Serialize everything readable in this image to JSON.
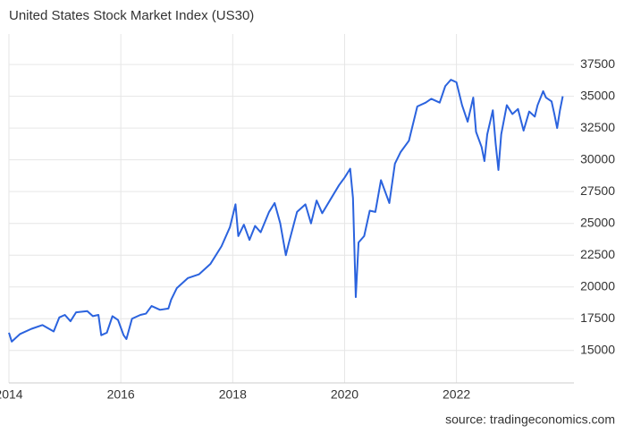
{
  "chart_data": {
    "type": "line",
    "title": "United States Stock Market Index (US30)",
    "source": "source: tradingeconomics.com",
    "color": "#2b63de",
    "grid": true,
    "x": [
      2014.0,
      2014.05,
      2014.2,
      2014.4,
      2014.6,
      2014.8,
      2014.9,
      2015.0,
      2015.1,
      2015.2,
      2015.4,
      2015.5,
      2015.6,
      2015.65,
      2015.75,
      2015.85,
      2015.95,
      2016.05,
      2016.1,
      2016.2,
      2016.35,
      2016.45,
      2016.55,
      2016.7,
      2016.85,
      2016.9,
      2017.0,
      2017.2,
      2017.4,
      2017.6,
      2017.8,
      2017.95,
      2018.05,
      2018.1,
      2018.2,
      2018.3,
      2018.4,
      2018.5,
      2018.65,
      2018.75,
      2018.85,
      2018.95,
      2019.0,
      2019.15,
      2019.3,
      2019.4,
      2019.5,
      2019.6,
      2019.75,
      2019.9,
      2020.0,
      2020.1,
      2020.15,
      2020.2,
      2020.25,
      2020.35,
      2020.45,
      2020.55,
      2020.65,
      2020.8,
      2020.9,
      2021.0,
      2021.15,
      2021.3,
      2021.45,
      2021.55,
      2021.7,
      2021.8,
      2021.9,
      2022.0,
      2022.1,
      2022.2,
      2022.3,
      2022.35,
      2022.45,
      2022.5,
      2022.55,
      2022.65,
      2022.7,
      2022.75,
      2022.8,
      2022.9,
      2023.0,
      2023.1,
      2023.2,
      2023.3,
      2023.4,
      2023.45,
      2023.55,
      2023.6,
      2023.7,
      2023.75,
      2023.8,
      2023.85,
      2023.9
    ],
    "values": [
      16400,
      15700,
      16300,
      16700,
      17000,
      16500,
      17600,
      17800,
      17300,
      18000,
      18100,
      17700,
      17800,
      16200,
      16400,
      17700,
      17400,
      16200,
      15900,
      17500,
      17800,
      17900,
      18500,
      18200,
      18300,
      19000,
      19900,
      20700,
      21000,
      21800,
      23200,
      24700,
      26500,
      24000,
      24900,
      23700,
      24800,
      24300,
      25900,
      26600,
      25000,
      22500,
      23400,
      25900,
      26500,
      25000,
      26800,
      25800,
      26900,
      28000,
      28600,
      29300,
      27000,
      19200,
      23500,
      24000,
      26000,
      25900,
      28400,
      26600,
      29700,
      30600,
      31500,
      34200,
      34500,
      34800,
      34500,
      35800,
      36300,
      36100,
      34300,
      33000,
      34900,
      32200,
      31000,
      29900,
      32000,
      33900,
      31300,
      29200,
      32000,
      34300,
      33600,
      34000,
      32300,
      33800,
      33400,
      34300,
      35400,
      34900,
      34600,
      33600,
      32500,
      33900,
      35000
    ],
    "xlim": [
      2014.0,
      2024.1
    ],
    "xticks": [
      2014,
      2016,
      2018,
      2020,
      2022
    ],
    "ylim": [
      12450,
      39900
    ],
    "yticks": [
      15000,
      17500,
      20000,
      22500,
      25000,
      27500,
      30000,
      32500,
      35000,
      37500
    ]
  }
}
